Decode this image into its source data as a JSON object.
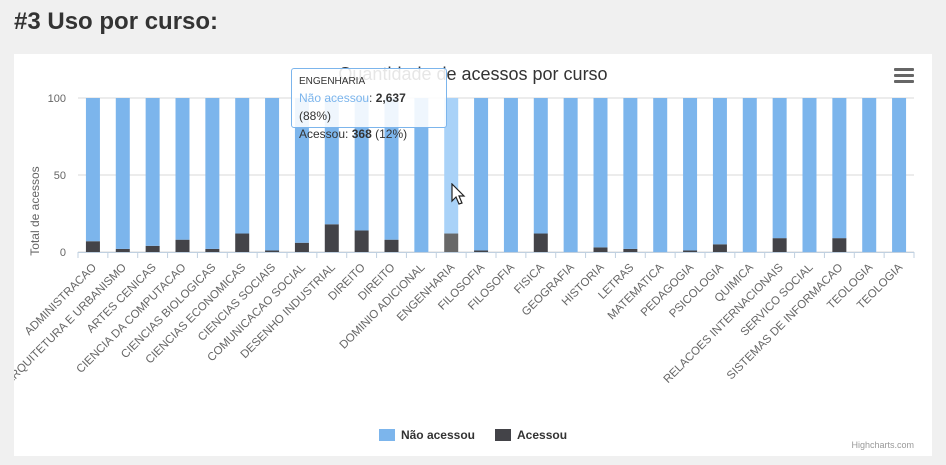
{
  "page": {
    "heading": "#3 Uso por curso:"
  },
  "menu_icon": "hamburger-menu-icon",
  "credits": "Highcharts.com",
  "colors": {
    "nao_acessou": "#7cb5ec",
    "acessou": "#434348",
    "hover": "#a9d2f8",
    "hover_dark": "#686868"
  },
  "tooltip": {
    "category": "ENGENHARIA",
    "line1_name": "Não acessou",
    "line1_value": "2,637",
    "line1_pct": "(88%)",
    "line2_name": "Acessou",
    "line2_value": "368",
    "line2_pct": "(12%)",
    "colon": ":"
  },
  "chart_data": {
    "type": "bar",
    "stacking": "percent",
    "title": "Quantidade de acessos por curso",
    "xlabel": "",
    "ylabel": "Total de acessos",
    "ylim": [
      0,
      100
    ],
    "yticks": [
      "0",
      "50",
      "100"
    ],
    "legend_position": "bottom-center",
    "grid": true,
    "hovered_category": "ENGENHARIA",
    "categories": [
      "ADMINISTRACAO",
      "ARQUITETURA E URBANISMO",
      "ARTES CENICAS",
      "CIENCIA DA COMPUTACAO",
      "CIENCIAS BIOLOGICAS",
      "CIENCIAS ECONOMICAS",
      "CIENCIAS SOCIAIS",
      "COMUNICACAO SOCIAL",
      "DESENHO INDUSTRIAL",
      "DIREITO",
      "DIREITO",
      "DOMINIO ADICIONAL",
      "ENGENHARIA",
      "FILOSOFIA",
      "FILOSOFIA",
      "FISICA",
      "GEOGRAFIA",
      "HISTORIA",
      "LETRAS",
      "MATEMATICA",
      "PEDAGOGIA",
      "PSICOLOGIA",
      "QUIMICA",
      "RELACOES INTERNACIONAIS",
      "SERVICO SOCIAL",
      "SISTEMAS DE INFORMACAO",
      "TEOLOGIA",
      "TEOLOGIA"
    ],
    "series": [
      {
        "name": "Não acessou",
        "values": [
          93,
          98,
          96,
          92,
          98,
          88,
          99,
          94,
          82,
          86,
          92,
          100,
          88,
          99,
          100,
          88,
          100,
          97,
          98,
          100,
          99,
          95,
          100,
          91,
          100,
          91,
          100,
          100
        ]
      },
      {
        "name": "Acessou",
        "values": [
          7,
          2,
          4,
          8,
          2,
          12,
          1,
          6,
          18,
          14,
          8,
          0,
          12,
          1,
          0,
          12,
          0,
          3,
          2,
          0,
          1,
          5,
          0,
          9,
          0,
          9,
          0,
          0
        ]
      }
    ]
  }
}
